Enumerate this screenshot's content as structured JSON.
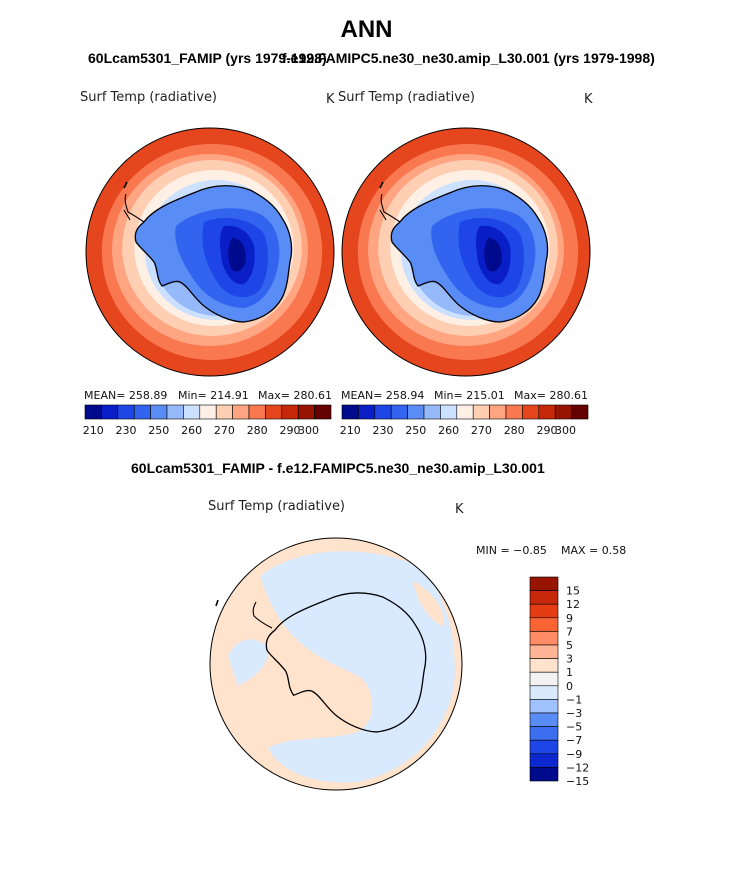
{
  "page": {
    "title": "ANN",
    "left_run_title": "60Lcam5301_FAMIP (yrs 1979-1998)",
    "right_run_title": "f.e12.FAMIPC5.ne30_ne30.amip_L30.001 (yrs 1979-1998)",
    "diff_title": "60Lcam5301_FAMIP - f.e12.FAMIPC5.ne30_ne30.amip_L30.001"
  },
  "colors": {
    "scale": [
      "#000a8c",
      "#0a1ec8",
      "#1e46e6",
      "#3264f0",
      "#5a8cf5",
      "#96b9fa",
      "#cce0ff",
      "#fff0e6",
      "#ffcfb4",
      "#ffa582",
      "#fa7850",
      "#e6461e",
      "#c8280a",
      "#961400",
      "#640000"
    ],
    "diff_scale": [
      "#000a8c",
      "#0a28cd",
      "#1e46e6",
      "#3c6ef0",
      "#5a8cf5",
      "#a0c3ff",
      "#d9eaff",
      "#f2f2f2",
      "#ffe3cc",
      "#ffb496",
      "#ff8c64",
      "#fa6432",
      "#e63c14",
      "#c8280a",
      "#961400"
    ],
    "outline": "#000000"
  },
  "chart_data": [
    {
      "type": "heatmap",
      "title": "Surf Temp (radiative)",
      "units": "K",
      "stats": {
        "mean": "MEAN=  258.89",
        "min": "Min=  214.91",
        "max": "Max=  280.61"
      },
      "levels": [
        210,
        215,
        220,
        230,
        240,
        250,
        255,
        260,
        265,
        270,
        275,
        280,
        285,
        290,
        300
      ],
      "colorbar_ticks": [
        "210",
        "230",
        "250",
        "260",
        "270",
        "280",
        "290",
        "300"
      ]
    },
    {
      "type": "heatmap",
      "title": "Surf Temp (radiative)",
      "units": "K",
      "stats": {
        "mean": "MEAN=  258.94",
        "min": "Min=  215.01",
        "max": "Max=  280.61"
      },
      "levels": [
        210,
        215,
        220,
        230,
        240,
        250,
        255,
        260,
        265,
        270,
        275,
        280,
        285,
        290,
        300
      ],
      "colorbar_ticks": [
        "210",
        "230",
        "250",
        "260",
        "270",
        "280",
        "290",
        "300"
      ]
    },
    {
      "type": "heatmap",
      "title": "Surf Temp (radiative)",
      "units": "K",
      "stats": {
        "min": "MIN =  −0.85",
        "max": "MAX =   0.58"
      },
      "levels": [
        -15,
        -12,
        -9,
        -7,
        -5,
        -3,
        -1,
        0,
        1,
        3,
        5,
        7,
        9,
        12,
        15
      ],
      "colorbar_ticks": [
        "15",
        "12",
        "9",
        "7",
        "5",
        "3",
        "1",
        "0",
        "−1",
        "−3",
        "−5",
        "−7",
        "−9",
        "−12",
        "−15"
      ]
    }
  ]
}
